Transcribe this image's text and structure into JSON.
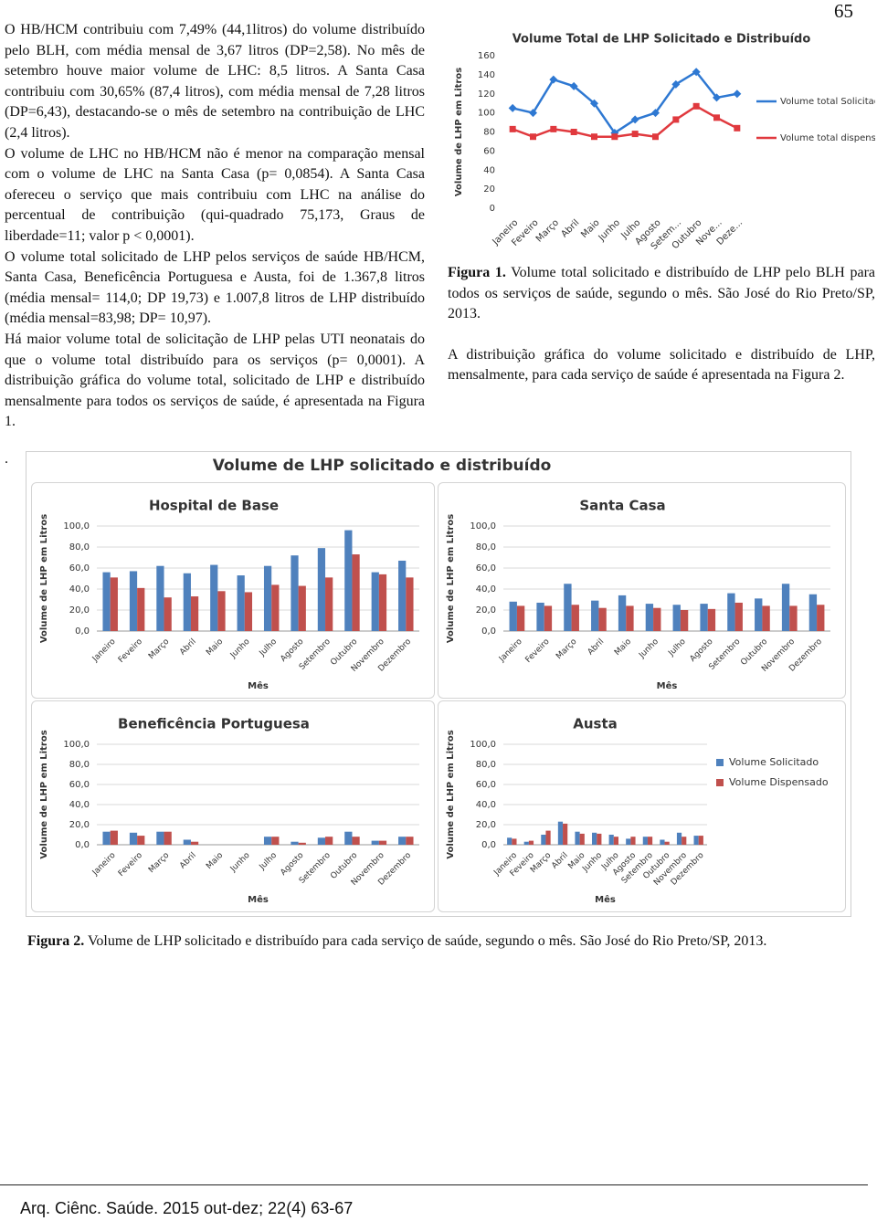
{
  "page_number": "65",
  "left_column": [
    "O HB/HCM contribuiu com 7,49% (44,1litros) do volume distribuído pelo BLH, com média mensal de 3,67 litros (DP=2,58). No mês de setembro houve maior volume de LHC: 8,5 litros. A Santa Casa contribuiu com 30,65% (87,4 litros), com média mensal de 7,28 litros (DP=6,43), destacando-se o mês de setembro na contribuição de LHC (2,4 litros).",
    "O volume de LHC no HB/HCM não é menor na comparação mensal com o volume de LHC na Santa Casa (p= 0,0854). A Santa Casa ofereceu o serviço que mais contribuiu com LHC na análise do percentual de contribuição (qui-quadrado 75,173, Graus de liberdade=11; valor p < 0,0001).",
    "O volume total solicitado de LHP pelos serviços de saúde HB/HCM, Santa Casa, Beneficência Portuguesa e Austa, foi de 1.367,8 litros (média mensal= 114,0; DP 19,73) e 1.007,8 litros de LHP distribuído (média mensal=83,98; DP= 10,97).",
    "Há maior volume total de solicitação de LHP pelas UTI neonatais do que o volume total distribuído para os serviços (p= 0,0001). A distribuição gráfica do volume total, solicitado de LHP e distribuído mensalmente para todos os serviços de saúde, é apresentada na Figura 1."
  ],
  "right_column": {
    "figure1_caption": {
      "label": "Figura 1.",
      "text": "Volume total solicitado e distribuído de LHP pelo BLH para todos os serviços de saúde, segundo o mês. São José do Rio Preto/SP, 2013."
    },
    "paragraph": "A distribuição gráfica do volume solicitado e distribuído de LHP, mensalmente, para cada serviço de saúde é apresentada na Figura 2."
  },
  "separator": ".",
  "figure2": {
    "title": "Volume de LHP solicitado e distribuído",
    "caption": {
      "label": "Figura 2.",
      "text": "Volume de LHP solicitado e distribuído para cada serviço de saúde, segundo o mês. São José do Rio Preto/SP, 2013."
    }
  },
  "footer": "Arq. Ciênc. Saúde. 2015 out-dez; 22(4) 63-67",
  "chart_data": [
    {
      "type": "line",
      "title": "Volume Total de LHP Solicitado e Distribuído",
      "ylabel": "Volume de LHP em Litros",
      "categories": [
        "Janeiro",
        "Feveiro",
        "Março",
        "Abril",
        "Maio",
        "Junho",
        "Julho",
        "Agosto",
        "Setem...",
        "Outubro",
        "Nove...",
        "Deze..."
      ],
      "series": [
        {
          "name": "Volume total Solicitado",
          "color": "#2e78d2",
          "values": [
            105,
            100,
            135,
            128,
            110,
            79,
            93,
            100,
            130,
            143,
            116,
            120
          ]
        },
        {
          "name": "Volume total dispensado",
          "color": "#e0393e",
          "values": [
            83,
            75,
            83,
            80,
            75,
            75,
            78,
            75,
            93,
            107,
            95,
            84
          ]
        }
      ],
      "ylim": [
        0,
        160
      ],
      "yticks": [
        0,
        20,
        40,
        60,
        80,
        100,
        120,
        140,
        160
      ],
      "grid": false,
      "legend": "right"
    },
    {
      "type": "bar",
      "title": "Hospital de Base",
      "ylabel": "Volume de LHP em Litros",
      "xlabel": "Mês",
      "categories": [
        "Janeiro",
        "Feveiro",
        "Março",
        "Abril",
        "Maio",
        "Junho",
        "Julho",
        "Agosto",
        "Setembro",
        "Outubro",
        "Novembro",
        "Dezembro"
      ],
      "series": [
        {
          "name": "Volume Solicitado",
          "color": "#4f81bd",
          "values": [
            56,
            57,
            62,
            55,
            63,
            53,
            62,
            72,
            79,
            96,
            56,
            67
          ]
        },
        {
          "name": "Volume Dispensado",
          "color": "#c0504d",
          "values": [
            51,
            41,
            32,
            33,
            38,
            37,
            44,
            43,
            51,
            73,
            54,
            51
          ]
        }
      ],
      "ylim": [
        0,
        100
      ],
      "yticks": [
        {
          "value": 0,
          "label": "0,0"
        },
        {
          "value": 20,
          "label": "20,0"
        },
        {
          "value": 40,
          "label": "40,0"
        },
        {
          "value": 60,
          "label": "60,0"
        },
        {
          "value": 80,
          "label": "80,0"
        },
        {
          "value": 100,
          "label": "100,0"
        }
      ],
      "grid": true
    },
    {
      "type": "bar",
      "title": "Santa Casa",
      "ylabel": "Volume de LHP em Litros",
      "xlabel": "Mês",
      "categories": [
        "Janeiro",
        "Feveiro",
        "Março",
        "Abril",
        "Maio",
        "Junho",
        "Julho",
        "Agosto",
        "Setembro",
        "Outubro",
        "Novembro",
        "Dezembro"
      ],
      "series": [
        {
          "name": "Volume Solicitado",
          "color": "#4f81bd",
          "values": [
            28,
            27,
            45,
            29,
            34,
            26,
            25,
            26,
            36,
            31,
            45,
            35
          ]
        },
        {
          "name": "Volume Dispensado",
          "color": "#c0504d",
          "values": [
            24,
            24,
            25,
            22,
            24,
            22,
            20,
            21,
            27,
            24,
            24,
            25
          ]
        }
      ],
      "ylim": [
        0,
        100
      ],
      "yticks": [
        {
          "value": 0,
          "label": "0,0"
        },
        {
          "value": 20,
          "label": "20,0"
        },
        {
          "value": 40,
          "label": "40,0"
        },
        {
          "value": 60,
          "label": "60,0"
        },
        {
          "value": 80,
          "label": "80,0"
        },
        {
          "value": 100,
          "label": "100,0"
        }
      ],
      "grid": true
    },
    {
      "type": "bar",
      "title": "Beneficência Portuguesa",
      "ylabel": "Volume de LHP em Litros",
      "xlabel": "Mês",
      "categories": [
        "Janeiro",
        "Feveiro",
        "Março",
        "Abril",
        "Maio",
        "Junho",
        "Julho",
        "Agosto",
        "Setembro",
        "Outubro",
        "Novembro",
        "Dezembro"
      ],
      "series": [
        {
          "name": "Volume Solicitado",
          "color": "#4f81bd",
          "values": [
            13,
            12,
            13,
            5,
            0,
            0,
            8,
            3,
            7,
            13,
            4,
            8
          ]
        },
        {
          "name": "Volume Dispensado",
          "color": "#c0504d",
          "values": [
            14,
            9,
            13,
            3,
            0,
            0,
            8,
            2,
            8,
            8,
            4,
            8
          ]
        }
      ],
      "ylim": [
        0,
        100
      ],
      "yticks": [
        {
          "value": 0,
          "label": "0,0"
        },
        {
          "value": 20,
          "label": "20,0"
        },
        {
          "value": 40,
          "label": "40,0"
        },
        {
          "value": 60,
          "label": "60,0"
        },
        {
          "value": 80,
          "label": "80,0"
        },
        {
          "value": 100,
          "label": "100,0"
        }
      ],
      "grid": true
    },
    {
      "type": "bar",
      "title": "Austa",
      "ylabel": "Volume de LHP em Litros",
      "xlabel": "Mês",
      "categories": [
        "Janeiro",
        "Feveiro",
        "Março",
        "Abril",
        "Maio",
        "Junho",
        "Julho",
        "Agosto",
        "Setembro",
        "Outubro",
        "Novembro",
        "Dezembro"
      ],
      "series": [
        {
          "name": "Volume Solicitado",
          "color": "#4f81bd",
          "values": [
            7,
            3,
            10,
            23,
            13,
            12,
            10,
            6,
            8,
            5,
            12,
            9
          ]
        },
        {
          "name": "Volume Dispensado",
          "color": "#c0504d",
          "values": [
            6,
            4,
            14,
            21,
            11,
            11,
            8,
            8,
            8,
            3,
            8,
            9
          ]
        }
      ],
      "ylim": [
        0,
        100
      ],
      "yticks": [
        {
          "value": 0,
          "label": "0,0"
        },
        {
          "value": 20,
          "label": "20,0"
        },
        {
          "value": 40,
          "label": "40,0"
        },
        {
          "value": 60,
          "label": "60,0"
        },
        {
          "value": 80,
          "label": "80,0"
        },
        {
          "value": 100,
          "label": "100,0"
        }
      ],
      "grid": true,
      "legend": "right"
    }
  ]
}
